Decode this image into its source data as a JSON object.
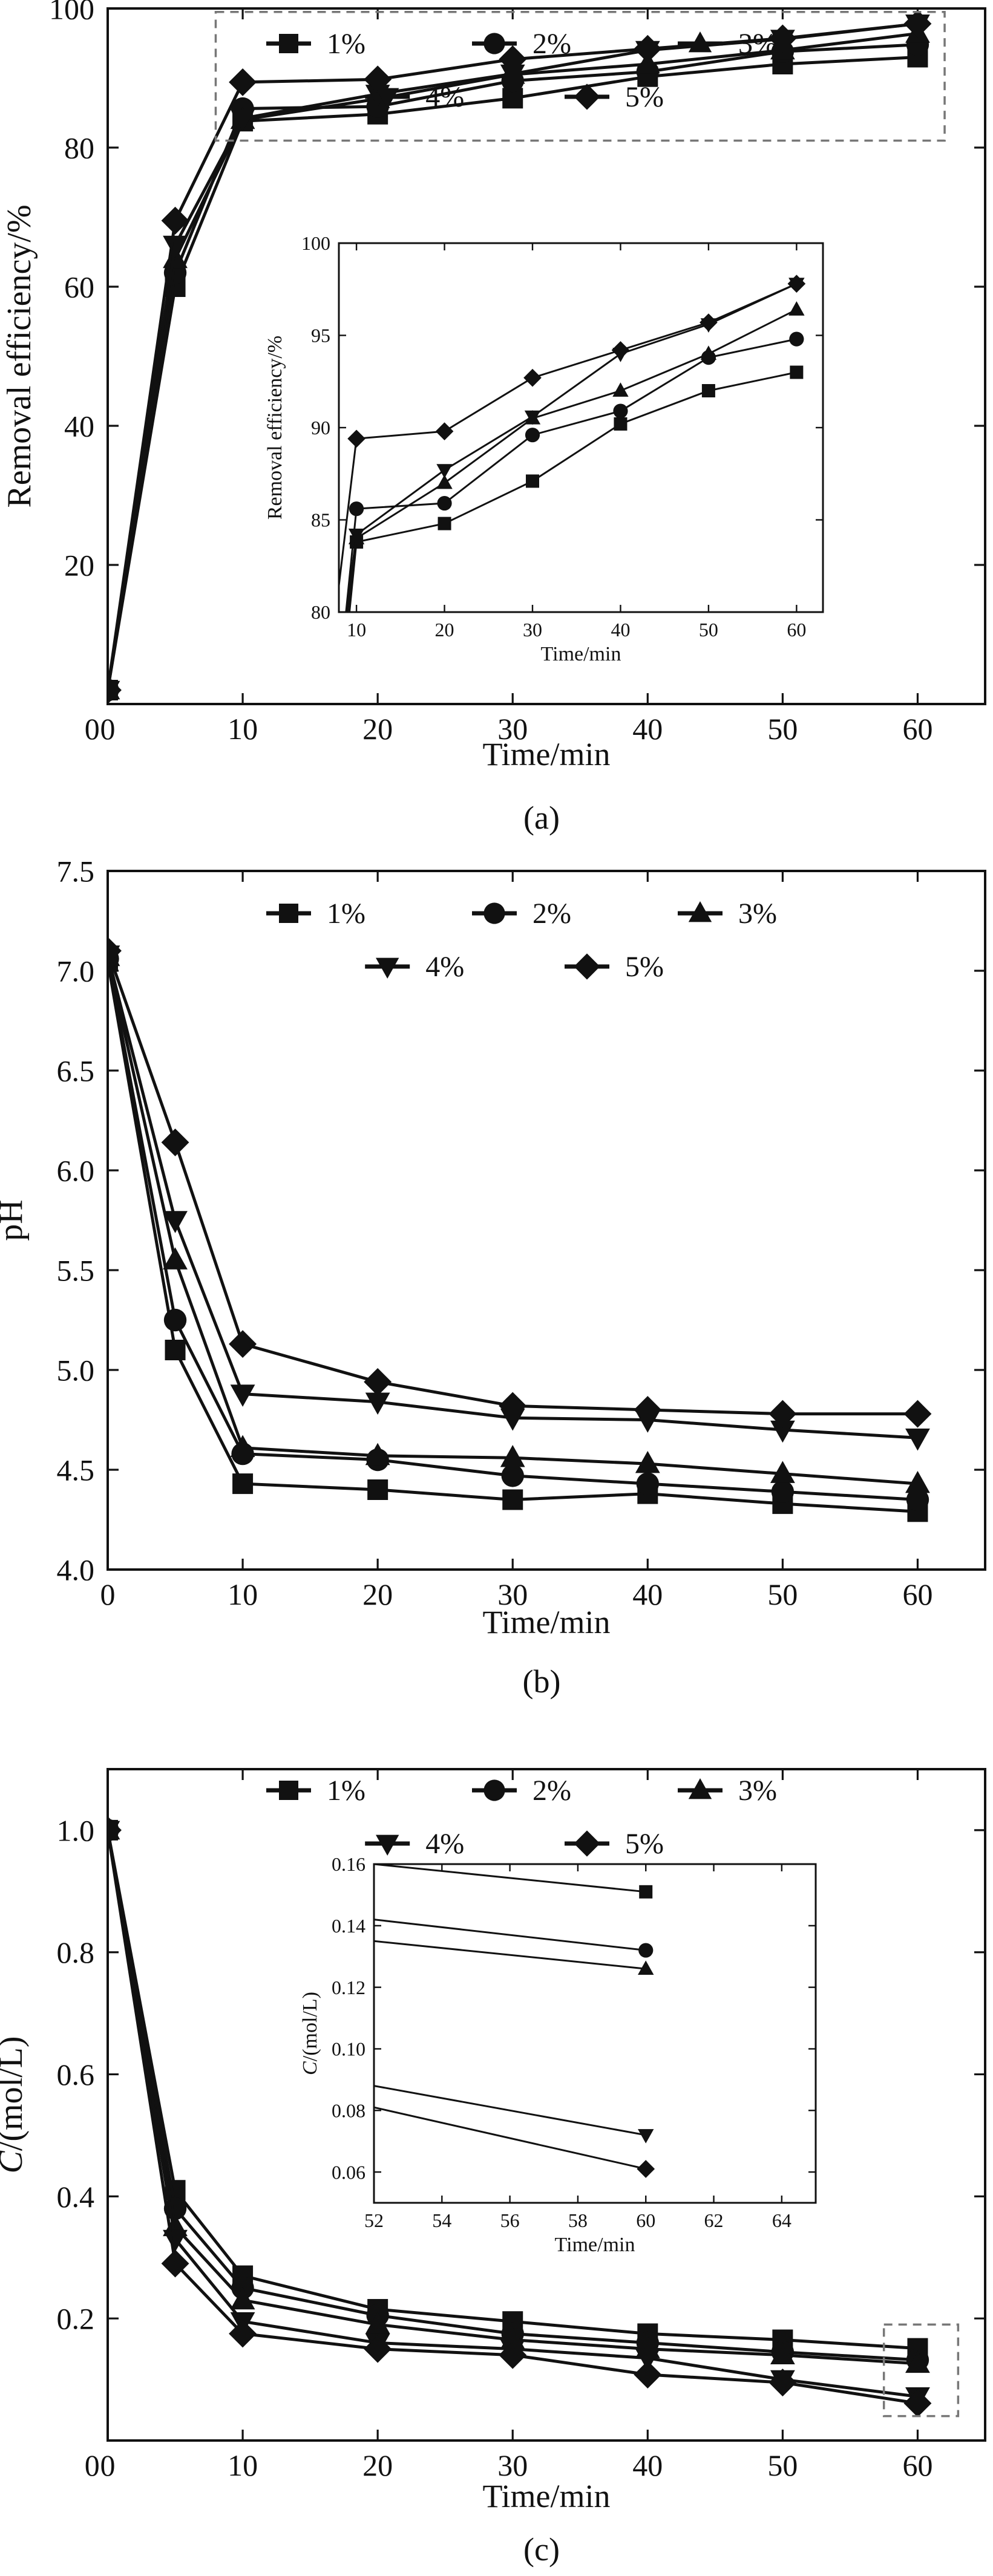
{
  "chart_data": [
    {
      "panel": "(a)",
      "type": "line",
      "xlabel": "Time/min",
      "ylabel": "Removal efficiency/%",
      "xlim": [
        0,
        65
      ],
      "ylim": [
        0,
        100
      ],
      "xticks": [
        0,
        10,
        20,
        30,
        40,
        50,
        60
      ],
      "yticks": [
        20,
        40,
        60,
        80,
        100
      ],
      "legend": {
        "placement": "top",
        "columns": 3
      },
      "x": [
        0,
        5,
        10,
        20,
        30,
        40,
        50,
        60
      ],
      "series": [
        {
          "name": "1%",
          "marker": "square",
          "values": [
            2,
            60,
            83.8,
            84.8,
            87.1,
            90.2,
            92.0,
            93.0
          ]
        },
        {
          "name": "2%",
          "marker": "circle",
          "values": [
            2,
            62,
            85.6,
            85.9,
            89.6,
            90.9,
            93.8,
            94.8
          ]
        },
        {
          "name": "3%",
          "marker": "triangle-up",
          "values": [
            2,
            64,
            84.0,
            87.0,
            90.5,
            92.0,
            94.0,
            96.4
          ]
        },
        {
          "name": "4%",
          "marker": "triangle-down",
          "values": [
            2,
            66,
            84.2,
            87.7,
            90.6,
            94.0,
            95.6,
            97.8
          ]
        },
        {
          "name": "5%",
          "marker": "diamond",
          "values": [
            2,
            69.5,
            89.4,
            89.8,
            92.7,
            94.2,
            95.7,
            97.8
          ]
        }
      ],
      "zoom_box_x": [
        8,
        62
      ],
      "zoom_box_y": [
        81,
        99.5
      ],
      "inset": {
        "xlabel": "Time/min",
        "ylabel": "Removal efficiency/%",
        "xlim": [
          8,
          63
        ],
        "ylim": [
          80,
          100
        ],
        "xticks": [
          10,
          20,
          30,
          40,
          50,
          60
        ],
        "yticks": [
          80,
          85,
          90,
          95,
          100
        ],
        "x": [
          10,
          20,
          30,
          40,
          50,
          60
        ],
        "series": [
          {
            "name": "1%",
            "marker": "square",
            "values": [
              83.8,
              84.8,
              87.1,
              90.2,
              92.0,
              93.0
            ]
          },
          {
            "name": "2%",
            "marker": "circle",
            "values": [
              85.6,
              85.9,
              89.6,
              90.9,
              93.8,
              94.8
            ]
          },
          {
            "name": "3%",
            "marker": "triangle-up",
            "values": [
              84.0,
              87.0,
              90.5,
              92.0,
              94.0,
              96.4
            ]
          },
          {
            "name": "4%",
            "marker": "triangle-down",
            "values": [
              84.2,
              87.7,
              90.6,
              94.0,
              95.6,
              97.8
            ]
          },
          {
            "name": "5%",
            "marker": "diamond",
            "values": [
              89.4,
              89.8,
              92.7,
              94.2,
              95.7,
              97.8
            ]
          }
        ]
      }
    },
    {
      "panel": "(b)",
      "type": "line",
      "xlabel": "Time/min",
      "ylabel": "pH",
      "xlim": [
        0,
        65
      ],
      "ylim": [
        4.0,
        7.5
      ],
      "xticks": [
        0,
        10,
        20,
        30,
        40,
        50,
        60
      ],
      "yticks": [
        4.0,
        4.5,
        5.0,
        5.5,
        6.0,
        6.5,
        7.0,
        7.5
      ],
      "legend": {
        "placement": "top",
        "columns": 3
      },
      "x": [
        0,
        5,
        10,
        20,
        30,
        40,
        50,
        60
      ],
      "series": [
        {
          "name": "1%",
          "marker": "square",
          "values": [
            7.05,
            5.1,
            4.43,
            4.4,
            4.35,
            4.38,
            4.33,
            4.29
          ]
        },
        {
          "name": "2%",
          "marker": "circle",
          "values": [
            7.06,
            5.25,
            4.58,
            4.55,
            4.47,
            4.43,
            4.39,
            4.35
          ]
        },
        {
          "name": "3%",
          "marker": "triangle-up",
          "values": [
            7.07,
            5.55,
            4.61,
            4.57,
            4.56,
            4.53,
            4.48,
            4.43
          ]
        },
        {
          "name": "4%",
          "marker": "triangle-down",
          "values": [
            7.08,
            5.75,
            4.88,
            4.84,
            4.76,
            4.75,
            4.7,
            4.66
          ]
        },
        {
          "name": "5%",
          "marker": "diamond",
          "values": [
            7.1,
            6.14,
            5.13,
            4.94,
            4.82,
            4.8,
            4.78,
            4.78
          ]
        }
      ]
    },
    {
      "panel": "(c)",
      "type": "line",
      "xlabel": "Time/min",
      "ylabel": "C/(mol/L)",
      "xlim": [
        0,
        65
      ],
      "ylim": [
        0,
        1.1
      ],
      "xticks": [
        0,
        10,
        20,
        30,
        40,
        50,
        60
      ],
      "yticks": [
        0.2,
        0.4,
        0.6,
        0.8,
        1.0
      ],
      "legend": {
        "placement": "top",
        "columns": 3
      },
      "x": [
        0,
        5,
        10,
        20,
        30,
        40,
        50,
        60
      ],
      "series": [
        {
          "name": "1%",
          "marker": "square",
          "values": [
            1.0,
            0.41,
            0.27,
            0.215,
            0.195,
            0.175,
            0.165,
            0.151
          ]
        },
        {
          "name": "2%",
          "marker": "circle",
          "values": [
            1.0,
            0.38,
            0.25,
            0.205,
            0.175,
            0.16,
            0.145,
            0.132
          ]
        },
        {
          "name": "3%",
          "marker": "triangle-up",
          "values": [
            1.0,
            0.35,
            0.23,
            0.19,
            0.165,
            0.15,
            0.14,
            0.126
          ]
        },
        {
          "name": "4%",
          "marker": "triangle-down",
          "values": [
            1.0,
            0.33,
            0.195,
            0.16,
            0.15,
            0.135,
            0.1,
            0.072
          ]
        },
        {
          "name": "5%",
          "marker": "diamond",
          "values": [
            1.0,
            0.29,
            0.175,
            0.15,
            0.14,
            0.108,
            0.095,
            0.061
          ]
        }
      ],
      "zoom_box_x": [
        57.5,
        63
      ],
      "zoom_box_y": [
        0.04,
        0.19
      ],
      "inset": {
        "xlabel": "Time/min",
        "ylabel": "C/(mol/L)",
        "xlim": [
          52,
          65
        ],
        "ylim": [
          0.05,
          0.16
        ],
        "xticks": [
          52,
          54,
          56,
          58,
          60,
          62,
          64
        ],
        "yticks": [
          0.06,
          0.08,
          0.1,
          0.12,
          0.14,
          0.16
        ],
        "ytick_labels": [
          "0.06",
          "0.08",
          "0.10",
          "0.12",
          "0.14",
          "0.16"
        ],
        "lines": [
          {
            "name": "1%",
            "marker": "square",
            "x": [
              52,
              60
            ],
            "y": [
              0.16,
              0.151
            ]
          },
          {
            "name": "2%",
            "marker": "circle",
            "x": [
              52,
              60
            ],
            "y": [
              0.142,
              0.132
            ]
          },
          {
            "name": "3%",
            "marker": "triangle-up",
            "x": [
              52,
              60
            ],
            "y": [
              0.135,
              0.126
            ]
          },
          {
            "name": "4%",
            "marker": "triangle-down",
            "x": [
              52,
              60
            ],
            "y": [
              0.088,
              0.072
            ]
          },
          {
            "name": "5%",
            "marker": "diamond",
            "x": [
              52,
              60
            ],
            "y": [
              0.081,
              0.061
            ]
          }
        ]
      }
    }
  ]
}
